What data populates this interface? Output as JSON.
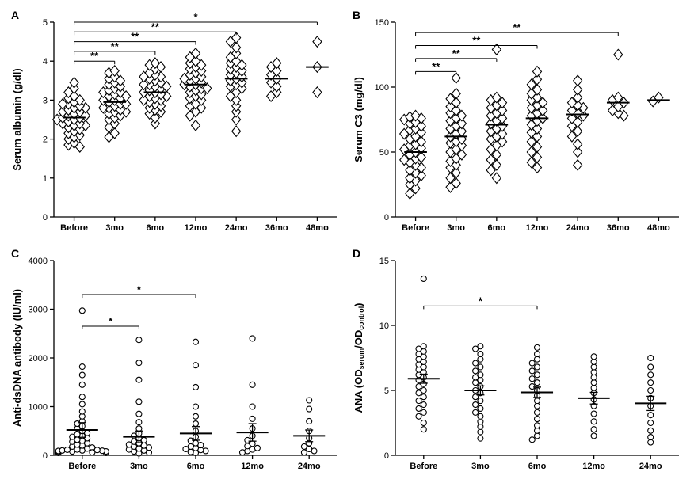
{
  "global": {
    "marker_stroke": "#000000",
    "marker_fill": "#ffffff",
    "marker_stroke_width": 1.1,
    "axis_color": "#000000",
    "axis_width": 1.3,
    "tick_len": 5,
    "font_family": "Arial, Helvetica, sans-serif",
    "label_fontsize": 13,
    "tick_fontsize": 11,
    "panel_label_fontsize": 14,
    "sig_line_width": 1.0,
    "sig_star_fontsize": 13
  },
  "panels": {
    "A": {
      "label": "A",
      "ylabel": "Serum albumin (g/dl)",
      "ylim": [
        0,
        5
      ],
      "ytick_step": 1,
      "marker_shape": "diamond",
      "marker_size": 8,
      "categories": [
        "Before",
        "3mo",
        "6mo",
        "12mo",
        "24mo",
        "36mo",
        "48mo"
      ],
      "data": {
        "Before": [
          1.8,
          1.85,
          1.9,
          2.0,
          2.05,
          2.1,
          2.15,
          2.2,
          2.25,
          2.3,
          2.35,
          2.35,
          2.4,
          2.4,
          2.45,
          2.5,
          2.5,
          2.55,
          2.55,
          2.6,
          2.6,
          2.65,
          2.7,
          2.7,
          2.75,
          2.8,
          2.8,
          2.85,
          2.9,
          2.9,
          2.95,
          3.0,
          3.05,
          3.1,
          3.2,
          3.3,
          3.45
        ],
        "3mo": [
          2.05,
          2.15,
          2.3,
          2.4,
          2.5,
          2.55,
          2.6,
          2.65,
          2.7,
          2.7,
          2.75,
          2.8,
          2.8,
          2.85,
          2.9,
          2.9,
          2.95,
          3.0,
          3.0,
          3.05,
          3.1,
          3.1,
          3.15,
          3.2,
          3.2,
          3.25,
          3.3,
          3.35,
          3.4,
          3.45,
          3.5,
          3.55,
          3.6,
          3.7,
          3.75
        ],
        "6mo": [
          2.4,
          2.55,
          2.65,
          2.7,
          2.75,
          2.8,
          2.85,
          2.9,
          2.95,
          3.0,
          3.0,
          3.05,
          3.1,
          3.1,
          3.15,
          3.2,
          3.2,
          3.25,
          3.3,
          3.35,
          3.35,
          3.4,
          3.4,
          3.45,
          3.5,
          3.55,
          3.6,
          3.6,
          3.65,
          3.7,
          3.8,
          3.85,
          3.9,
          3.95
        ],
        "12mo": [
          2.35,
          2.6,
          2.7,
          2.8,
          2.85,
          2.9,
          3.0,
          3.05,
          3.1,
          3.15,
          3.2,
          3.25,
          3.3,
          3.3,
          3.35,
          3.4,
          3.4,
          3.45,
          3.5,
          3.55,
          3.55,
          3.6,
          3.65,
          3.7,
          3.75,
          3.8,
          3.85,
          3.9,
          3.95,
          4.0,
          4.1,
          4.2
        ],
        "24mo": [
          2.2,
          2.5,
          2.7,
          2.85,
          3.0,
          3.1,
          3.2,
          3.3,
          3.35,
          3.4,
          3.45,
          3.5,
          3.55,
          3.6,
          3.65,
          3.7,
          3.75,
          3.8,
          3.85,
          3.9,
          3.95,
          4.0,
          4.1,
          4.2,
          4.35,
          4.5,
          4.6
        ],
        "36mo": [
          3.1,
          3.2,
          3.35,
          3.45,
          3.55,
          3.65,
          3.75,
          3.85,
          3.95
        ],
        "48mo": [
          3.2,
          3.85,
          4.5
        ]
      },
      "means": {
        "Before": 2.55,
        "3mo": 2.95,
        "6mo": 3.2,
        "12mo": 3.4,
        "24mo": 3.55,
        "36mo": 3.55,
        "48mo": 3.85
      },
      "sig": [
        {
          "from": "Before",
          "to": "3mo",
          "label": "**",
          "y": 4.0
        },
        {
          "from": "Before",
          "to": "6mo",
          "label": "**",
          "y": 4.25
        },
        {
          "from": "Before",
          "to": "12mo",
          "label": "**",
          "y": 4.5
        },
        {
          "from": "Before",
          "to": "24mo",
          "label": "**",
          "y": 4.75
        },
        {
          "from": "Before",
          "to": "48mo",
          "label": "*",
          "y": 5.0
        }
      ]
    },
    "B": {
      "label": "B",
      "ylabel": "Serum C3 (mg/dl)",
      "ylim": [
        0,
        150
      ],
      "ytick_step": 50,
      "marker_shape": "diamond",
      "marker_size": 8,
      "categories": [
        "Before",
        "3mo",
        "6mo",
        "12mo",
        "24mo",
        "36mo",
        "48mo"
      ],
      "data": {
        "Before": [
          18,
          22,
          25,
          28,
          30,
          32,
          34,
          36,
          38,
          40,
          42,
          44,
          45,
          46,
          48,
          50,
          52,
          53,
          55,
          56,
          58,
          60,
          62,
          64,
          65,
          67,
          68,
          70,
          72,
          73,
          75,
          76,
          77,
          78
        ],
        "3mo": [
          23,
          26,
          30,
          34,
          38,
          40,
          43,
          45,
          48,
          50,
          52,
          55,
          57,
          58,
          60,
          62,
          64,
          66,
          68,
          70,
          72,
          74,
          76,
          78,
          80,
          82,
          85,
          88,
          91,
          95,
          107
        ],
        "6mo": [
          30,
          36,
          40,
          44,
          48,
          52,
          55,
          58,
          60,
          62,
          64,
          66,
          68,
          70,
          72,
          74,
          76,
          78,
          80,
          82,
          84,
          86,
          88,
          90,
          92,
          129
        ],
        "12mo": [
          38,
          42,
          46,
          50,
          54,
          58,
          62,
          65,
          68,
          71,
          74,
          76,
          78,
          80,
          82,
          84,
          86,
          88,
          90,
          92,
          95,
          98,
          102,
          106,
          112
        ],
        "24mo": [
          40,
          50,
          56,
          62,
          66,
          70,
          73,
          76,
          78,
          80,
          82,
          84,
          86,
          88,
          92,
          98,
          105
        ],
        "36mo": [
          78,
          80,
          82,
          85,
          88,
          90,
          92,
          125
        ],
        "48mo": [
          89,
          92
        ]
      },
      "means": {
        "Before": 50,
        "3mo": 62,
        "6mo": 71,
        "12mo": 76,
        "24mo": 79,
        "36mo": 88,
        "48mo": 90
      },
      "sig": [
        {
          "from": "Before",
          "to": "3mo",
          "label": "**",
          "y": 112
        },
        {
          "from": "Before",
          "to": "6mo",
          "label": "**",
          "y": 122
        },
        {
          "from": "Before",
          "to": "12mo",
          "label": "**",
          "y": 132
        },
        {
          "from": "Before",
          "to": "36mo",
          "label": "**",
          "y": 142
        }
      ]
    },
    "C": {
      "label": "C",
      "ylabel": "Anti-dsDNA antibody (IU/ml)",
      "ylim": [
        0,
        4000
      ],
      "ytick_step": 1000,
      "marker_shape": "circle",
      "marker_size": 7,
      "categories": [
        "Before",
        "3mo",
        "6mo",
        "12mo",
        "24mo"
      ],
      "data": {
        "Before": [
          50,
          80,
          100,
          120,
          140,
          160,
          180,
          200,
          220,
          250,
          280,
          300,
          320,
          350,
          380,
          400,
          430,
          460,
          500,
          550,
          600,
          650,
          700,
          800,
          900,
          1050,
          1200,
          1450,
          1650,
          1820,
          2970
        ],
        "3mo": [
          40,
          60,
          80,
          100,
          120,
          140,
          160,
          180,
          200,
          220,
          250,
          280,
          310,
          350,
          400,
          450,
          550,
          680,
          850,
          1100,
          1550,
          1900,
          2370
        ],
        "6mo": [
          50,
          70,
          90,
          110,
          130,
          150,
          180,
          210,
          250,
          300,
          380,
          500,
          650,
          800,
          1000,
          1400,
          1850,
          2330
        ],
        "12mo": [
          60,
          90,
          120,
          150,
          190,
          240,
          310,
          400,
          550,
          750,
          1000,
          1450,
          2400
        ],
        "24mo": [
          60,
          90,
          130,
          180,
          250,
          350,
          500,
          700,
          950,
          1130
        ],
        "Before_extra": [
          50,
          60,
          70,
          80,
          90,
          95,
          100,
          110,
          115
        ]
      },
      "means": {
        "Before": 520,
        "3mo": 380,
        "6mo": 450,
        "12mo": 470,
        "24mo": 400
      },
      "sem": {
        "Before": 150,
        "3mo": 120,
        "6mo": 140,
        "12mo": 180,
        "24mo": 120
      },
      "sig": [
        {
          "from": "Before",
          "to": "3mo",
          "label": "*",
          "y": 2650
        },
        {
          "from": "Before",
          "to": "6mo",
          "label": "*",
          "y": 3300
        }
      ]
    },
    "D": {
      "label": "D",
      "ylabel_parts": [
        "ANA (OD",
        "serum",
        "/OD",
        "control",
        ")"
      ],
      "ylim": [
        0,
        15
      ],
      "ytick_step": 5,
      "marker_shape": "circle",
      "marker_size": 7,
      "categories": [
        "Before",
        "3mo",
        "6mo",
        "12mo",
        "24mo"
      ],
      "data": {
        "Before": [
          2.0,
          2.5,
          3.0,
          3.3,
          3.6,
          3.9,
          4.2,
          4.5,
          4.8,
          5.0,
          5.3,
          5.5,
          5.8,
          6.0,
          6.2,
          6.4,
          6.6,
          6.8,
          7.0,
          7.2,
          7.4,
          7.6,
          7.8,
          8.0,
          8.2,
          8.4,
          13.6
        ],
        "3mo": [
          1.3,
          1.8,
          2.2,
          2.6,
          3.0,
          3.3,
          3.6,
          3.9,
          4.2,
          4.5,
          4.8,
          5.0,
          5.3,
          5.6,
          5.8,
          6.0,
          6.2,
          6.5,
          6.8,
          7.1,
          7.4,
          7.8,
          8.2,
          8.4
        ],
        "6mo": [
          1.2,
          1.5,
          1.9,
          2.3,
          2.8,
          3.3,
          3.8,
          4.2,
          4.6,
          5.0,
          5.3,
          5.6,
          5.9,
          6.2,
          6.5,
          6.8,
          7.1,
          7.4,
          7.8,
          8.3
        ],
        "12mo": [
          1.5,
          2.0,
          2.6,
          3.2,
          3.8,
          4.3,
          4.8,
          5.2,
          5.6,
          6.0,
          6.4,
          6.8,
          7.2,
          7.6
        ],
        "24mo": [
          1.0,
          1.4,
          1.9,
          2.5,
          3.1,
          3.8,
          4.4,
          5.0,
          5.6,
          6.2,
          6.8,
          7.5
        ]
      },
      "means": {
        "Before": 5.9,
        "3mo": 5.0,
        "6mo": 4.85,
        "12mo": 4.4,
        "24mo": 4.0
      },
      "sem": {
        "Before": 0.35,
        "3mo": 0.35,
        "6mo": 0.4,
        "12mo": 0.45,
        "24mo": 0.55
      },
      "sig": [
        {
          "from": "Before",
          "to": "6mo",
          "label": "*",
          "y": 11.5
        }
      ]
    }
  }
}
